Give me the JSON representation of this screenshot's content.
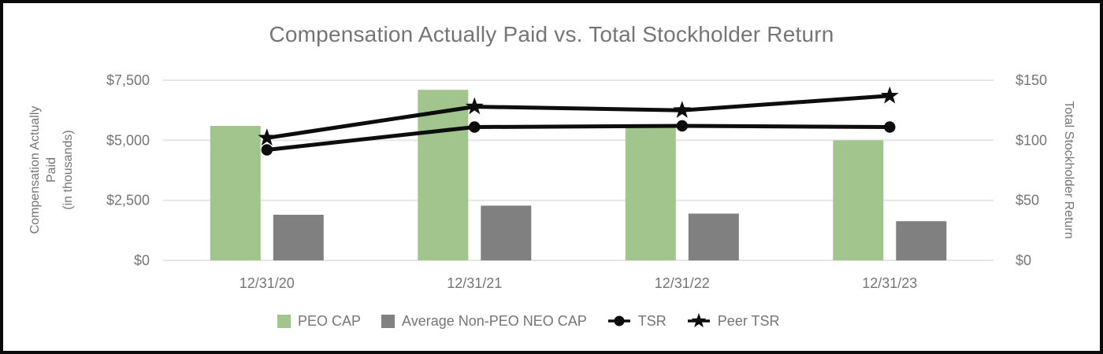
{
  "title": "Compensation Actually Paid vs. Total Stockholder Return",
  "colors": {
    "peo_cap_green": "#a1c58c",
    "neo_cap_gray": "#808080",
    "line_black": "#0d0d0d",
    "text_gray": "#757575",
    "gridline": "#e6e6e6",
    "background": "#ffffff",
    "border": "#0a0a0a"
  },
  "legend": {
    "items": [
      {
        "label": "PEO CAP",
        "marker": "square",
        "color": "#a1c58c"
      },
      {
        "label": "Average Non-PEO NEO CAP",
        "marker": "square",
        "color": "#808080"
      },
      {
        "label": "TSR",
        "marker": "circle-line",
        "color": "#0d0d0d"
      },
      {
        "label": "Peer TSR",
        "marker": "star-line",
        "color": "#0d0d0d"
      }
    ]
  },
  "chart_data": {
    "type": "bar",
    "subtype": "combo-bar-line-dual-axis",
    "title": "Compensation Actually Paid vs. Total Stockholder Return",
    "categories": [
      "12/31/20",
      "12/31/21",
      "12/31/22",
      "12/31/23"
    ],
    "bar_series": [
      {
        "name": "PEO CAP",
        "axis": "left",
        "color": "#a1c58c",
        "values": [
          5600,
          7100,
          5550,
          5000
        ]
      },
      {
        "name": "Average Non-PEO NEO CAP",
        "axis": "left",
        "color": "#808080",
        "values": [
          1900,
          2280,
          1950,
          1630
        ]
      }
    ],
    "line_series": [
      {
        "name": "TSR",
        "axis": "right",
        "marker": "circle",
        "color": "#0d0d0d",
        "values": [
          92,
          111,
          112,
          111
        ]
      },
      {
        "name": "Peer TSR",
        "axis": "right",
        "marker": "star",
        "color": "#0d0d0d",
        "values": [
          102,
          128,
          125,
          137
        ]
      }
    ],
    "left_axis": {
      "title_lines": [
        "Compensation Actually",
        "Paid",
        "(in thousands)"
      ],
      "range": [
        0,
        7500
      ],
      "ticks": [
        {
          "label": "$0",
          "value": 0
        },
        {
          "label": "$2,500",
          "value": 2500
        },
        {
          "label": "$5,000",
          "value": 5000
        },
        {
          "label": "$7,500",
          "value": 7500
        }
      ]
    },
    "right_axis": {
      "title": "Total Stockholder Return",
      "range": [
        0,
        150
      ],
      "ticks": [
        {
          "label": "$0",
          "value": 0
        },
        {
          "label": "$50",
          "value": 50
        },
        {
          "label": "$100",
          "value": 100
        },
        {
          "label": "$150",
          "value": 150
        }
      ]
    },
    "grid": true,
    "legend_position": "bottom"
  }
}
